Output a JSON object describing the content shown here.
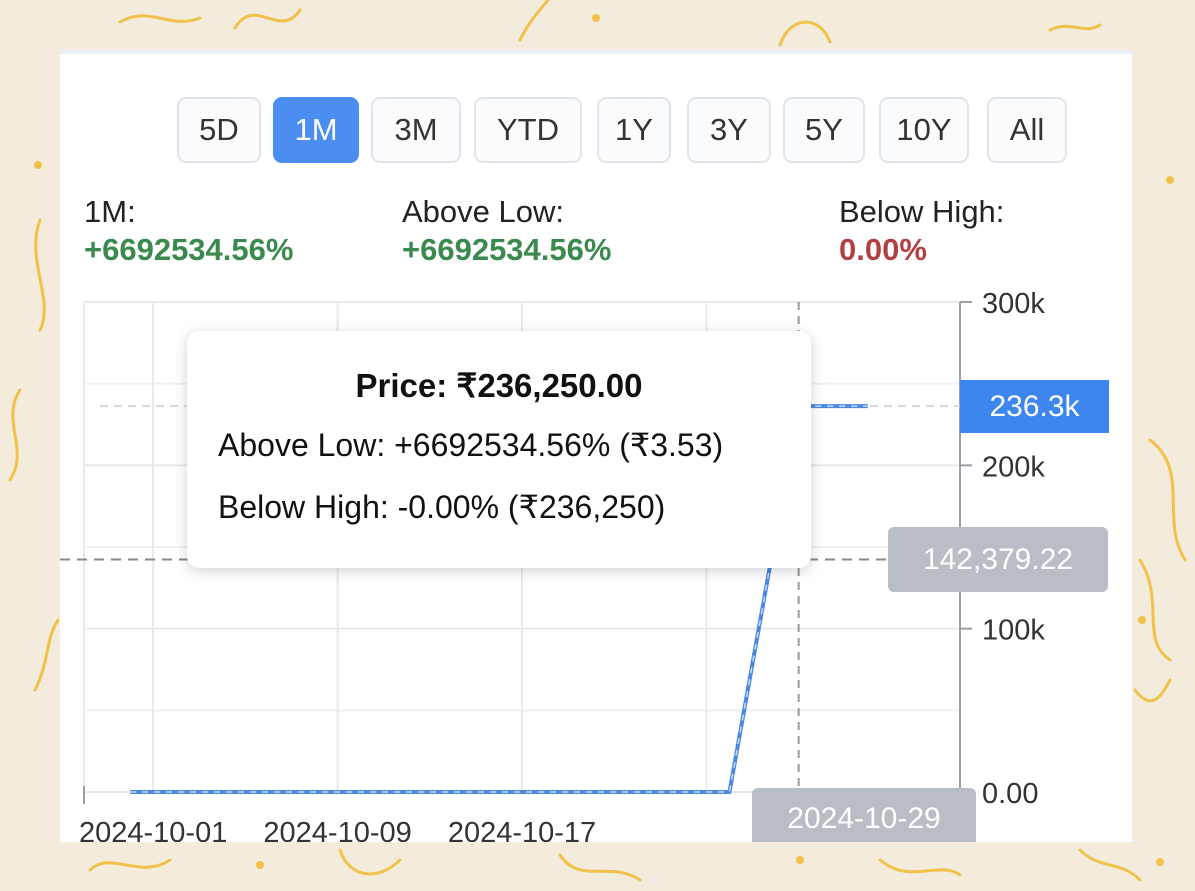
{
  "range_buttons": [
    "5D",
    "1M",
    "3M",
    "YTD",
    "1Y",
    "3Y",
    "5Y",
    "10Y",
    "All"
  ],
  "active_range": "1M",
  "stats": {
    "period": {
      "label": "1M:",
      "value": "+6692534.56%"
    },
    "above_low": {
      "label": "Above Low:",
      "value": "+6692534.56%"
    },
    "below_high": {
      "label": "Below High:",
      "value": "0.00%"
    }
  },
  "tooltip": {
    "title": "Price: ₹236,250.00",
    "above_low": "Above Low: +6692534.56% (₹3.53)",
    "below_high": "Below High: -0.00% (₹236,250)"
  },
  "badges": {
    "last_price": "236.3k",
    "crosshair_value": "142,379.22",
    "crosshair_date": "2024-10-29"
  },
  "colors": {
    "accent": "#4b8df1",
    "positive": "#3a8a4e",
    "negative": "#b34040",
    "line": "#4a88e0",
    "badge_gray": "#b9bdc5"
  },
  "chart_data": {
    "type": "line",
    "x_tick_labels": [
      "2024-10-01",
      "2024-10-09",
      "2024-10-17"
    ],
    "y_tick_labels": [
      "300k",
      "200k",
      "100k",
      "0.00"
    ],
    "y_ticks": [
      300000,
      200000,
      100000,
      0
    ],
    "ylim": [
      0,
      300000
    ],
    "xlim": [
      "2024-09-28",
      "2024-11-05"
    ],
    "grid": true,
    "series": [
      {
        "x": [
          "2024-09-30",
          "2024-10-08",
          "2024-10-16",
          "2024-10-24",
          "2024-10-26",
          "2024-10-29",
          "2024-11-01"
        ],
        "values": [
          3.53,
          3.53,
          3.53,
          3.53,
          3.53,
          236250,
          236250
        ]
      }
    ],
    "reference_line": 236250,
    "crosshair": {
      "x": "2024-10-29",
      "y": 142379.22
    }
  }
}
